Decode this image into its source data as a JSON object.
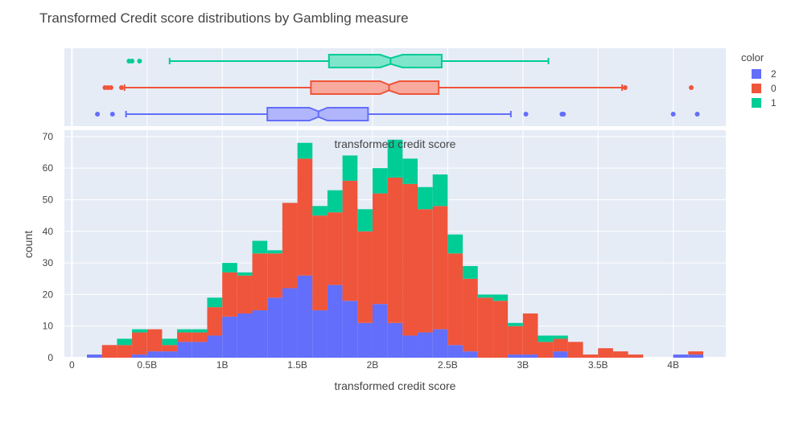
{
  "chart_data": {
    "type": "bar",
    "title": "Transformed Credit score distributions by Gambling measure",
    "xlabel": "transformed credit score",
    "ylabel": "count",
    "marginal_label": "transformed credit score",
    "barmode": "stack",
    "xlim": [
      -0.05,
      4.35
    ],
    "ylim": [
      0,
      72
    ],
    "x_ticks": [
      0,
      0.5,
      1,
      1.5,
      2,
      2.5,
      3,
      3.5,
      4
    ],
    "x_tick_labels": [
      "0",
      "0.5B",
      "1B",
      "1.5B",
      "2B",
      "2.5B",
      "3B",
      "3.5B",
      "4B"
    ],
    "y_ticks": [
      0,
      10,
      20,
      30,
      40,
      50,
      60,
      70
    ],
    "y_tick_labels": [
      "0",
      "10",
      "20",
      "30",
      "40",
      "50",
      "60",
      "70"
    ],
    "bin_width": 0.1,
    "bin_starts": [
      0.1,
      0.2,
      0.3,
      0.4,
      0.5,
      0.6,
      0.7,
      0.8,
      0.9,
      1.0,
      1.1,
      1.2,
      1.3,
      1.4,
      1.5,
      1.6,
      1.7,
      1.8,
      1.9,
      2.0,
      2.1,
      2.2,
      2.3,
      2.4,
      2.5,
      2.6,
      2.7,
      2.8,
      2.9,
      3.0,
      3.1,
      3.2,
      3.3,
      3.4,
      3.5,
      3.6,
      3.7,
      3.8,
      3.9,
      4.0,
      4.1
    ],
    "legend_title": "color",
    "legend_position": "top-right",
    "series": [
      {
        "name": "2",
        "color": "#636efa",
        "values": [
          1,
          0,
          0,
          1,
          2,
          2,
          5,
          5,
          7,
          13,
          14,
          15,
          19,
          22,
          26,
          15,
          23,
          18,
          11,
          17,
          11,
          7,
          8,
          9,
          4,
          2,
          0,
          0,
          1,
          1,
          0,
          2,
          0,
          0,
          0,
          0,
          0,
          0,
          0,
          1,
          1
        ]
      },
      {
        "name": "0",
        "color": "#ef553b",
        "values": [
          0,
          4,
          4,
          7,
          7,
          2,
          3,
          3,
          9,
          14,
          12,
          18,
          14,
          27,
          37,
          30,
          23,
          38,
          29,
          35,
          46,
          48,
          39,
          39,
          29,
          23,
          19,
          18,
          9,
          13,
          5,
          4,
          5,
          1,
          3,
          2,
          1,
          0,
          0,
          0,
          1
        ]
      },
      {
        "name": "1",
        "color": "#00cc96",
        "values": [
          0,
          0,
          2,
          1,
          0,
          2,
          1,
          1,
          3,
          3,
          1,
          4,
          1,
          0,
          5,
          3,
          7,
          8,
          7,
          8,
          12,
          8,
          7,
          10,
          6,
          4,
          1,
          2,
          1,
          0,
          2,
          1,
          0,
          0,
          0,
          0,
          0,
          0,
          0,
          0,
          0
        ]
      }
    ],
    "box_plots": [
      {
        "name": "1",
        "color": "#00cc96",
        "fill": "#7fe5cb",
        "whisker_low": 0.65,
        "q1": 1.71,
        "notch_low": 2.05,
        "median": 2.12,
        "notch_high": 2.2,
        "q3": 2.46,
        "whisker_high": 3.17,
        "outliers": [
          0.38,
          0.4,
          0.45
        ]
      },
      {
        "name": "0",
        "color": "#ef553b",
        "fill": "#f7aa9d",
        "whisker_low": 0.35,
        "q1": 1.59,
        "notch_low": 2.05,
        "median": 2.11,
        "notch_high": 2.18,
        "q3": 2.44,
        "whisker_high": 3.66,
        "outliers": [
          0.22,
          0.24,
          0.26,
          0.33,
          3.68,
          4.12
        ]
      },
      {
        "name": "2",
        "color": "#636efa",
        "fill": "#b1b6fc",
        "whisker_low": 0.36,
        "q1": 1.3,
        "notch_low": 1.58,
        "median": 1.64,
        "notch_high": 1.7,
        "q3": 1.97,
        "whisker_high": 2.92,
        "outliers": [
          0.17,
          0.27,
          3.02,
          3.26,
          3.27,
          4.0,
          4.16
        ]
      }
    ]
  }
}
